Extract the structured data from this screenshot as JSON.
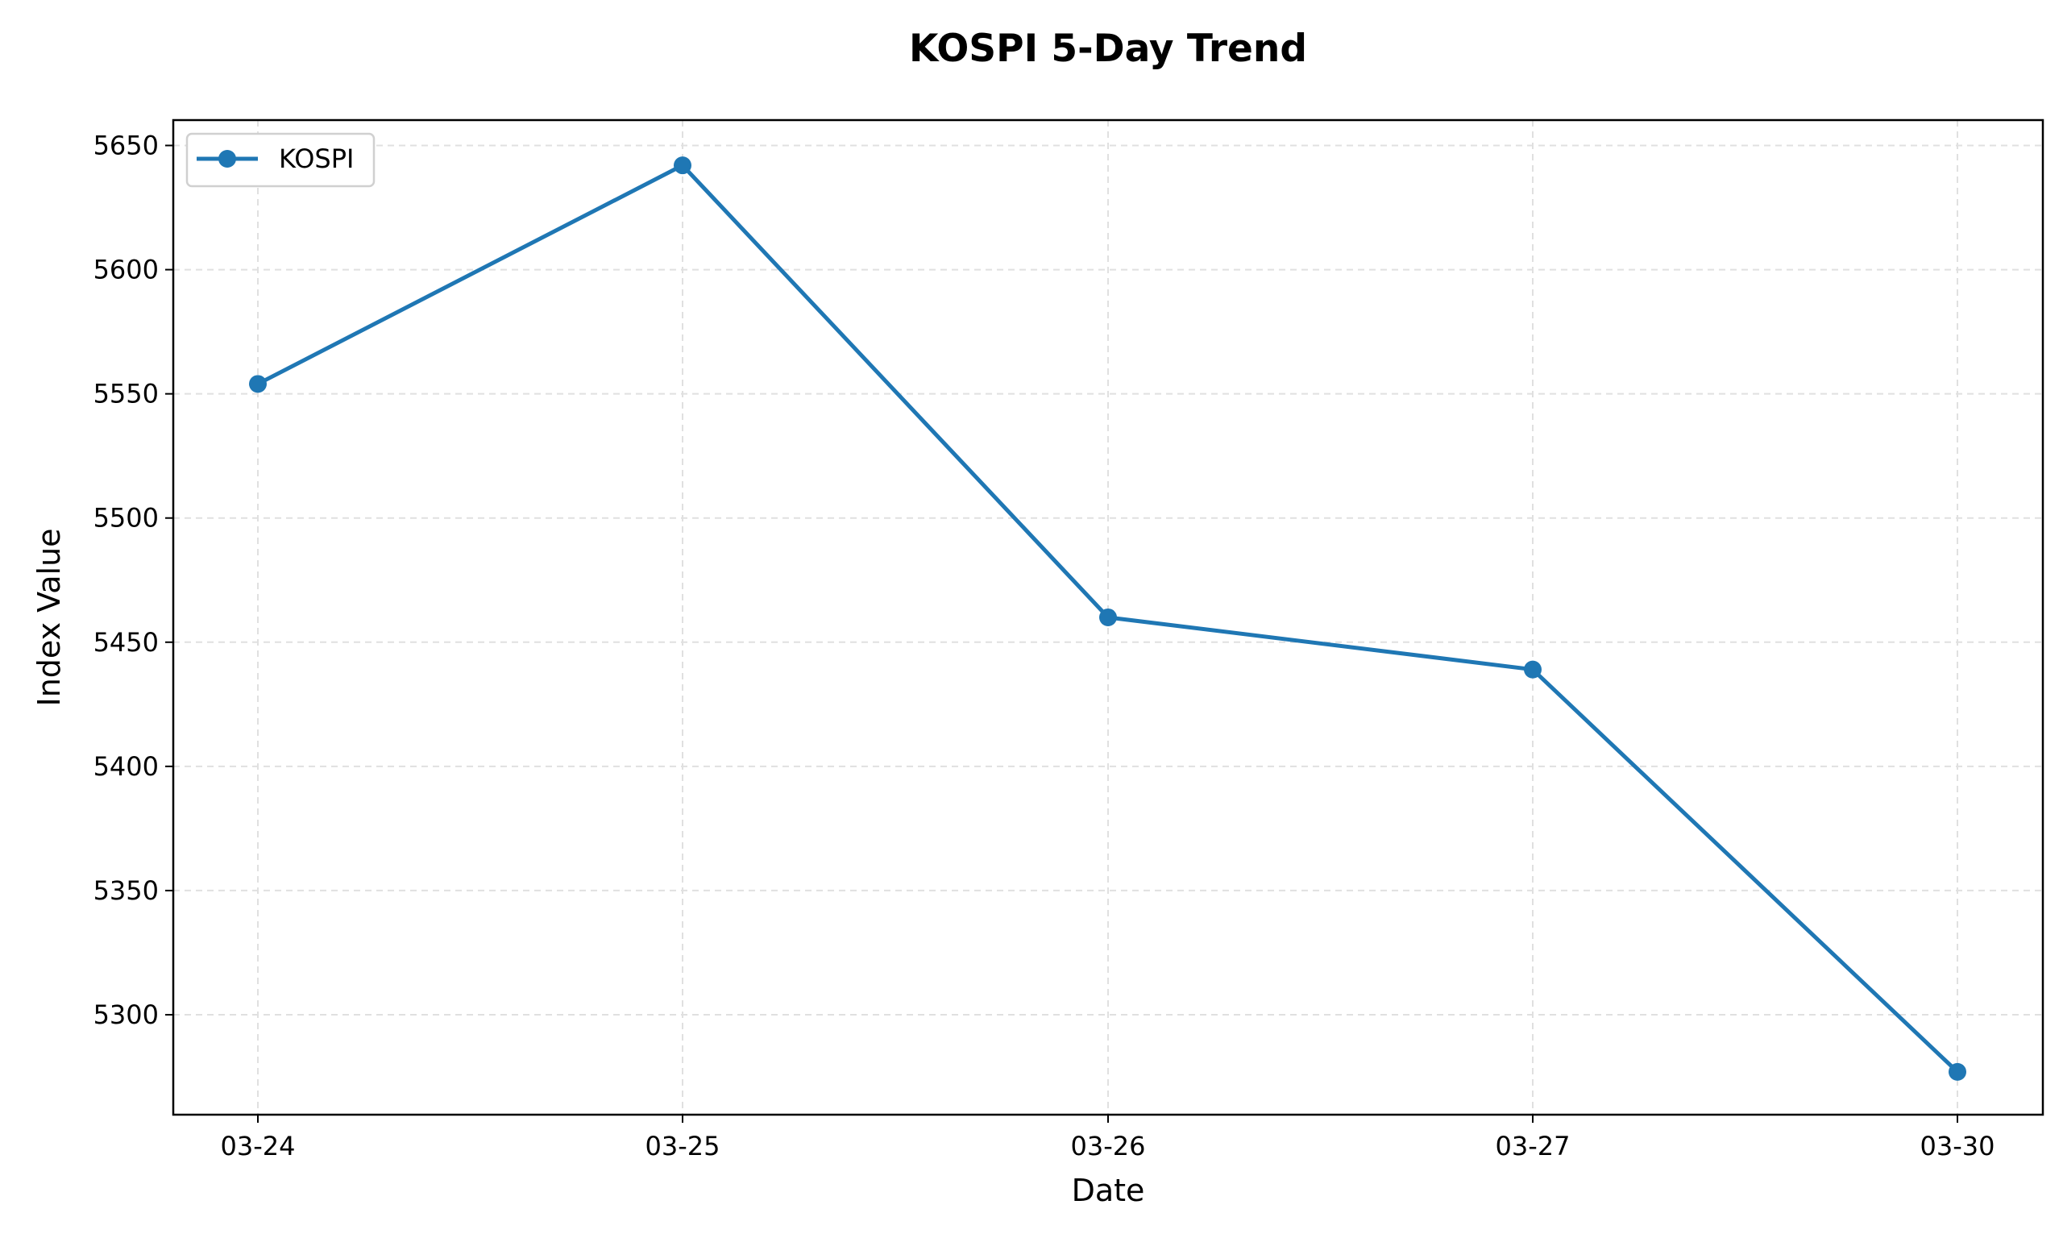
{
  "chart_data": {
    "type": "line",
    "title": "KOSPI 5-Day Trend",
    "xlabel": "Date",
    "ylabel": "Index Value",
    "categories": [
      "03-24",
      "03-25",
      "03-26",
      "03-27",
      "03-30"
    ],
    "series": [
      {
        "name": "KOSPI",
        "color": "#1f77b4",
        "marker": "circle",
        "values": [
          5554,
          5642,
          5460,
          5439,
          5277
        ]
      }
    ],
    "yticks": [
      5300,
      5350,
      5400,
      5450,
      5500,
      5550,
      5600,
      5650
    ],
    "ylim": [
      5260,
      5660
    ],
    "grid": true,
    "legend_position": "upper left"
  }
}
